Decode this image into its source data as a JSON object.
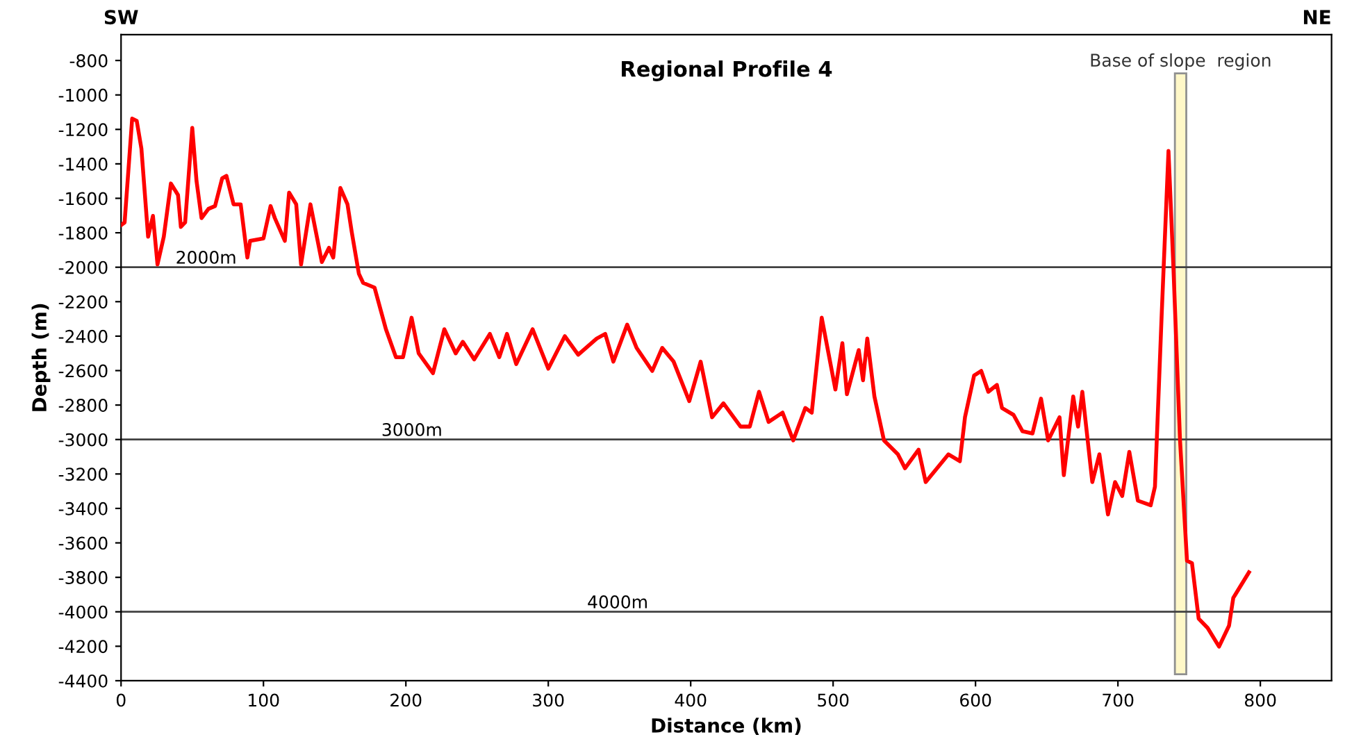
{
  "chart_data": {
    "type": "line",
    "title": "Regional Profile 4",
    "xlabel": "Distance (km)",
    "ylabel": "Depth (m)",
    "x": [
      0,
      2.5,
      7.8,
      11,
      14.3,
      19,
      22.4,
      25.6,
      30,
      35,
      40,
      42,
      45,
      50,
      53,
      56.5,
      61.4,
      66,
      71,
      74,
      79,
      84,
      88.7,
      90.6,
      100,
      105,
      108,
      115,
      118,
      123,
      126.4,
      133,
      141,
      146,
      149,
      154,
      159,
      162,
      167,
      170,
      178,
      186,
      193,
      198,
      204,
      209,
      219,
      227,
      235,
      240,
      248,
      259,
      265.6,
      271,
      277.5,
      289,
      300,
      311.6,
      321,
      334,
      340,
      345.7,
      355.4,
      362,
      373,
      380,
      388,
      399,
      407,
      415,
      423,
      435,
      441.5,
      448,
      454.7,
      464.5,
      472,
      480.5,
      485,
      492,
      501.6,
      506.5,
      509.7,
      518,
      521,
      524,
      529,
      535.7,
      545.5,
      550.5,
      560,
      565,
      581,
      589,
      592.6,
      599,
      604,
      609,
      615,
      618.6,
      626.7,
      633,
      640,
      646,
      651,
      659,
      662,
      668.6,
      672,
      675,
      682,
      687,
      693,
      698,
      703,
      708,
      714,
      723,
      726,
      730.7,
      735.5,
      739,
      743.6,
      748.5,
      752,
      756.7,
      763,
      771,
      778,
      781,
      792
    ],
    "series": [
      {
        "color": "#ff0000",
        "line_style": "solid",
        "values": [
          -1756,
          -1740,
          -1137,
          -1150,
          -1312,
          -1823,
          -1702,
          -1984,
          -1823,
          -1514,
          -1581,
          -1766,
          -1740,
          -1191,
          -1500,
          -1715,
          -1661,
          -1645,
          -1484,
          -1470,
          -1635,
          -1635,
          -1944,
          -1847,
          -1833,
          -1645,
          -1715,
          -1847,
          -1567,
          -1635,
          -1984,
          -1635,
          -1970,
          -1887,
          -1944,
          -1540,
          -1635,
          -1796,
          -2038,
          -2091,
          -2118,
          -2360,
          -2522,
          -2522,
          -2293,
          -2500,
          -2615,
          -2360,
          -2500,
          -2433,
          -2535,
          -2387,
          -2522,
          -2387,
          -2562,
          -2360,
          -2589,
          -2400,
          -2508,
          -2414,
          -2387,
          -2548,
          -2333,
          -2468,
          -2602,
          -2468,
          -2548,
          -2777,
          -2548,
          -2871,
          -2790,
          -2925,
          -2925,
          -2723,
          -2898,
          -2844,
          -3005,
          -2817,
          -2844,
          -2293,
          -2710,
          -2441,
          -2737,
          -2481,
          -2656,
          -2414,
          -2750,
          -3005,
          -3086,
          -3167,
          -3059,
          -3247,
          -3086,
          -3126,
          -2871,
          -2629,
          -2602,
          -2723,
          -2683,
          -2817,
          -2857,
          -2952,
          -2965,
          -2763,
          -3005,
          -2871,
          -3207,
          -2750,
          -2925,
          -2723,
          -3247,
          -3086,
          -3435,
          -3247,
          -3328,
          -3072,
          -3355,
          -3382,
          -3274,
          -2280,
          -1325,
          -2011,
          -3005,
          -3704,
          -3718,
          -4040,
          -4094,
          -4202,
          -4081,
          -3919,
          -3771
        ]
      }
    ],
    "xlim": [
      0,
      850
    ],
    "xticks": [
      0,
      100,
      200,
      300,
      400,
      500,
      600,
      700,
      800
    ],
    "ylim": [
      -4400,
      -650
    ],
    "yticks": [
      -800,
      -1000,
      -1200,
      -1400,
      -1600,
      -1800,
      -2000,
      -2200,
      -2400,
      -2600,
      -2800,
      -3000,
      -3200,
      -3400,
      -3600,
      -3800,
      -4000,
      -4200,
      -4400
    ],
    "ref_lines": [
      {
        "axis": "y",
        "value": -2000,
        "label": "2000m",
        "color": "#404040"
      },
      {
        "axis": "y",
        "value": -3000,
        "label": "3000m",
        "color": "#404040"
      },
      {
        "axis": "y",
        "value": -4000,
        "label": "4000m",
        "color": "#404040"
      }
    ],
    "bands": [
      {
        "axis": "x",
        "from": 740,
        "to": 748,
        "label": "Base of slope  region",
        "color": "#fff8c8"
      }
    ],
    "annotations": [
      "SW",
      "NE"
    ],
    "grid": false,
    "legend": false,
    "marker": "none"
  }
}
